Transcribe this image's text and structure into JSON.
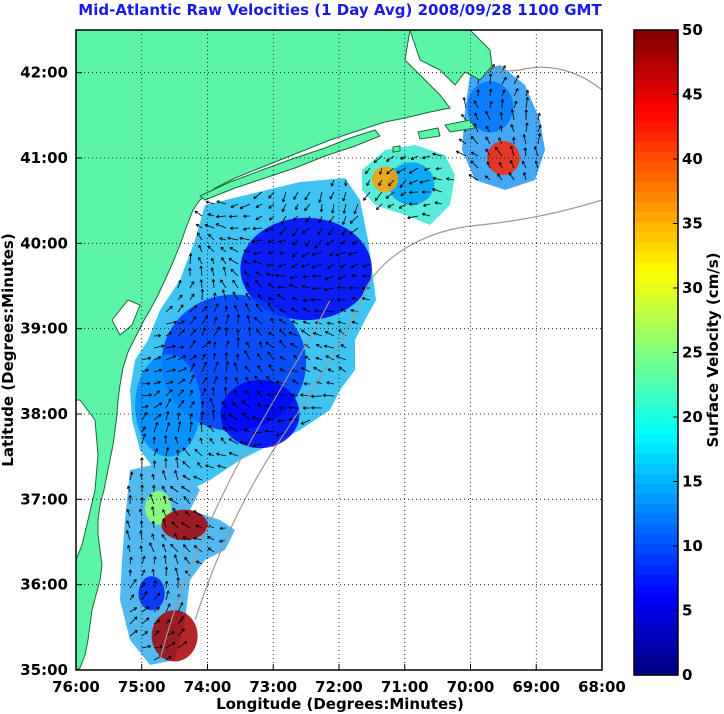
{
  "chart_data": {
    "type": "heatmap",
    "title": "Mid-Atlantic Raw Velocities (1 Day Avg) 2008/09/28 1100 GMT",
    "xlabel": "Longitude (Degrees:Minutes)",
    "ylabel": "Latitude (Degrees:Minutes)",
    "colorbar_label": "Surface Velocity (cm/s)",
    "xlim": [
      -76,
      -68
    ],
    "ylim": [
      35,
      42.5
    ],
    "x_ticks": [
      {
        "value": -76,
        "label": "76:00"
      },
      {
        "value": -75,
        "label": "75:00"
      },
      {
        "value": -74,
        "label": "74:00"
      },
      {
        "value": -73,
        "label": "73:00"
      },
      {
        "value": -72,
        "label": "72:00"
      },
      {
        "value": -71,
        "label": "71:00"
      },
      {
        "value": -70,
        "label": "70:00"
      },
      {
        "value": -69,
        "label": "69:00"
      },
      {
        "value": -68,
        "label": "68:00"
      }
    ],
    "y_ticks": [
      {
        "value": 35,
        "label": "35:00"
      },
      {
        "value": 36,
        "label": "36:00"
      },
      {
        "value": 37,
        "label": "37:00"
      },
      {
        "value": 38,
        "label": "38:00"
      },
      {
        "value": 39,
        "label": "39:00"
      },
      {
        "value": 40,
        "label": "40:00"
      },
      {
        "value": 41,
        "label": "41:00"
      },
      {
        "value": 42,
        "label": "42:00"
      }
    ],
    "colorbar_range": [
      0,
      50
    ],
    "colorbar_ticks": [
      "0",
      "5",
      "10",
      "15",
      "20",
      "25",
      "30",
      "35",
      "40",
      "45",
      "50"
    ],
    "colormap": "jet",
    "grid": true,
    "colors": {
      "land": "#5cf5a8",
      "title": "#1a1ae6",
      "contour": "#9a9a9a",
      "vector": "#000000"
    },
    "velocity_regions": [
      {
        "lon": -72.5,
        "lat": 39.7,
        "r_lon": 1.0,
        "r_lat": 0.6,
        "speed": 6
      },
      {
        "lon": -73.6,
        "lat": 38.6,
        "r_lon": 1.1,
        "r_lat": 0.8,
        "speed": 9
      },
      {
        "lon": -73.2,
        "lat": 38.0,
        "r_lon": 0.6,
        "r_lat": 0.4,
        "speed": 6
      },
      {
        "lon": -74.6,
        "lat": 38.1,
        "r_lon": 0.5,
        "r_lat": 0.6,
        "speed": 13
      },
      {
        "lon": -74.75,
        "lat": 36.9,
        "r_lon": 0.2,
        "r_lat": 0.2,
        "speed": 26
      },
      {
        "lon": -74.35,
        "lat": 36.7,
        "r_lon": 0.35,
        "r_lat": 0.18,
        "speed": 48
      },
      {
        "lon": -74.85,
        "lat": 35.9,
        "r_lon": 0.2,
        "r_lat": 0.2,
        "speed": 8
      },
      {
        "lon": -74.5,
        "lat": 35.4,
        "r_lon": 0.35,
        "r_lat": 0.3,
        "speed": 48
      },
      {
        "lon": -69.5,
        "lat": 41.0,
        "r_lon": 0.25,
        "r_lat": 0.2,
        "speed": 42
      },
      {
        "lon": -70.9,
        "lat": 40.7,
        "r_lon": 0.35,
        "r_lat": 0.25,
        "speed": 14
      },
      {
        "lon": -71.3,
        "lat": 40.75,
        "r_lon": 0.2,
        "r_lat": 0.15,
        "speed": 36
      },
      {
        "lon": -69.7,
        "lat": 41.6,
        "r_lon": 0.35,
        "r_lat": 0.3,
        "speed": 12
      }
    ]
  }
}
